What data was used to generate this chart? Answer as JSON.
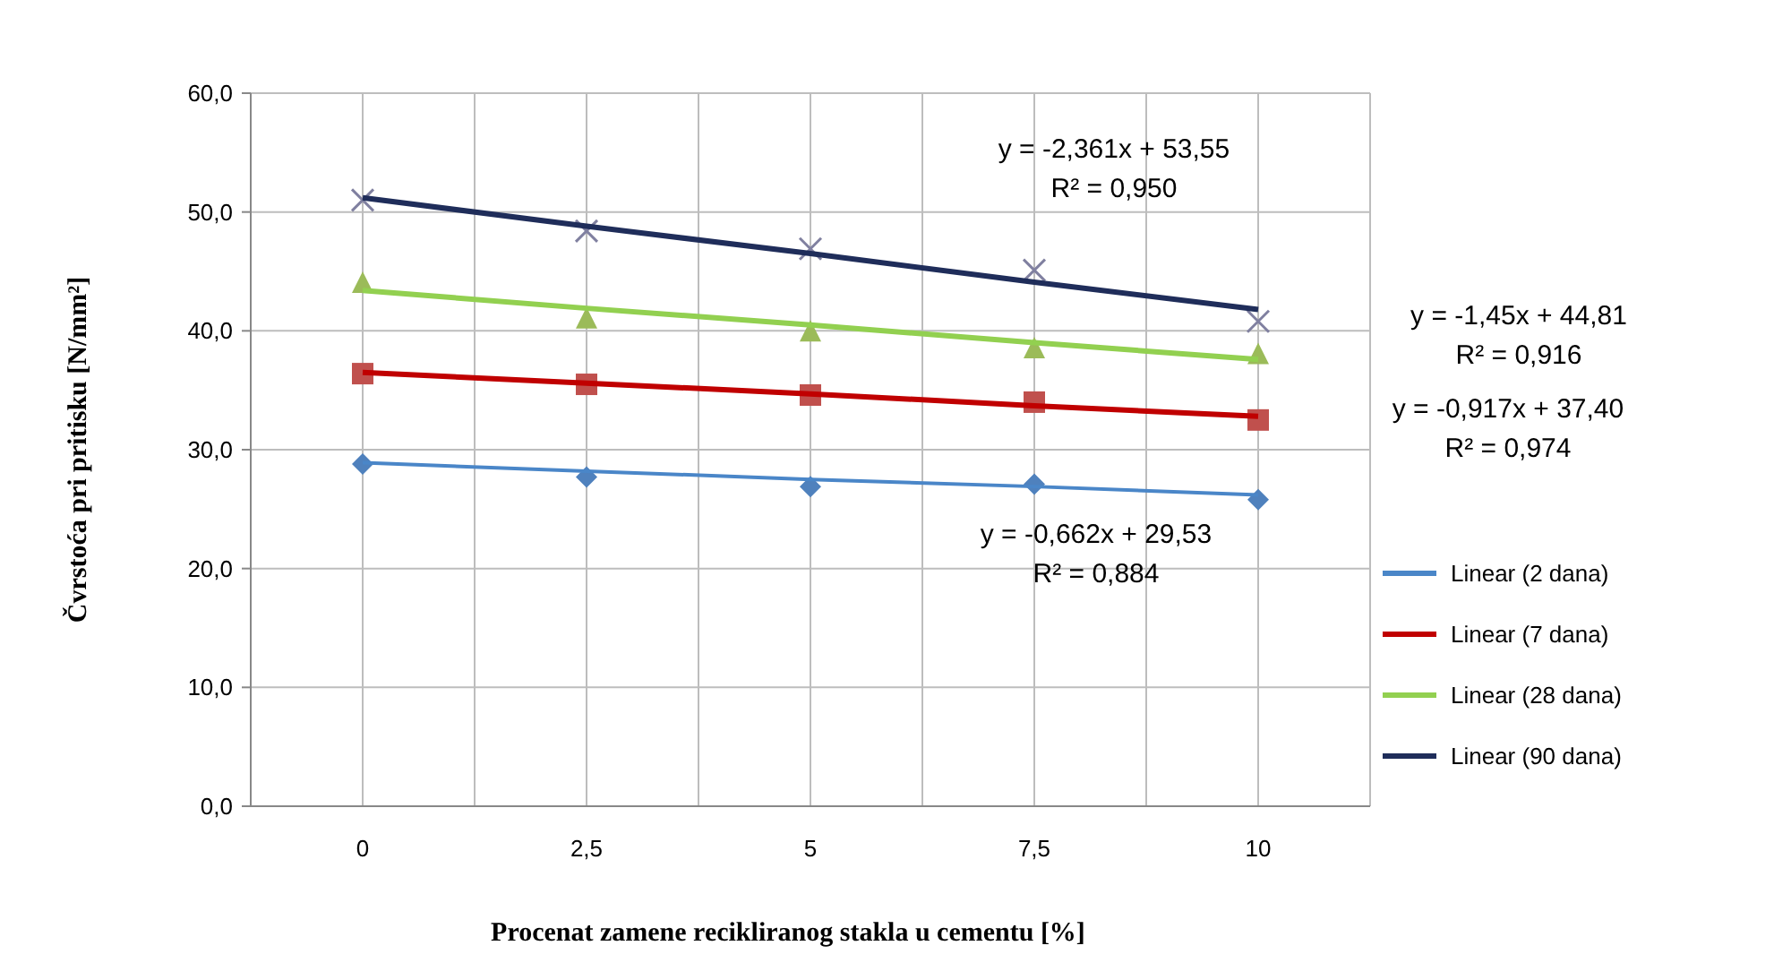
{
  "chart_data": {
    "type": "scatter",
    "xlabel": "Procenat zamene recikliranog stakla u cementu [%]",
    "ylabel": "Čvrstoća pri pritisku [N/mm²]",
    "categories": [
      "0",
      "2,5",
      "5",
      "7,5",
      "10"
    ],
    "ylim": [
      0,
      60
    ],
    "yticks": [
      {
        "value": 0,
        "label": "0,0"
      },
      {
        "value": 10,
        "label": "10,0"
      },
      {
        "value": 20,
        "label": "20,0"
      },
      {
        "value": 30,
        "label": "30,0"
      },
      {
        "value": 40,
        "label": "40,0"
      },
      {
        "value": 50,
        "label": "50,0"
      },
      {
        "value": 60,
        "label": "60,0"
      }
    ],
    "grid": true,
    "legend": "right",
    "series": [
      {
        "color": "#4f81bd",
        "marker": "diamond",
        "values": [
          28.8,
          27.7,
          26.9,
          27.1,
          25.8
        ]
      },
      {
        "color": "#c0504d",
        "marker": "square",
        "values": [
          36.4,
          35.5,
          34.6,
          34.0,
          32.5
        ]
      },
      {
        "color": "#9bbb59",
        "marker": "triangle",
        "values": [
          44.1,
          41.1,
          40.0,
          38.6,
          38.1
        ]
      },
      {
        "color": "#8080a0",
        "marker": "cross",
        "values": [
          51.0,
          48.4,
          46.9,
          45.1,
          40.8
        ]
      },
      {
        "type": "line",
        "name": "Linear (2 dana)",
        "color": "#4a86c8",
        "values": [
          28.9,
          28.2,
          27.5,
          26.9,
          26.2
        ]
      },
      {
        "type": "line",
        "name": "Linear (7 dana)",
        "color": "#c00000",
        "values": [
          36.5,
          35.6,
          34.7,
          33.7,
          32.8
        ]
      },
      {
        "type": "line",
        "name": "Linear (28 dana)",
        "color": "#92d050",
        "values": [
          43.4,
          41.9,
          40.5,
          39.0,
          37.6
        ]
      },
      {
        "type": "line",
        "name": "Linear (90 dana)",
        "color": "#1f2d5a",
        "values": [
          51.2,
          48.8,
          46.5,
          44.1,
          41.8
        ]
      }
    ],
    "annotations": [
      "y = -2,361x + 53,55\nR² = 0,950",
      "y = -1,45x + 44,81\nR² = 0,916",
      "y = -0,917x + 37,40\nR² = 0,974",
      "y = -0,662x + 29,53\nR² = 0,884"
    ]
  }
}
